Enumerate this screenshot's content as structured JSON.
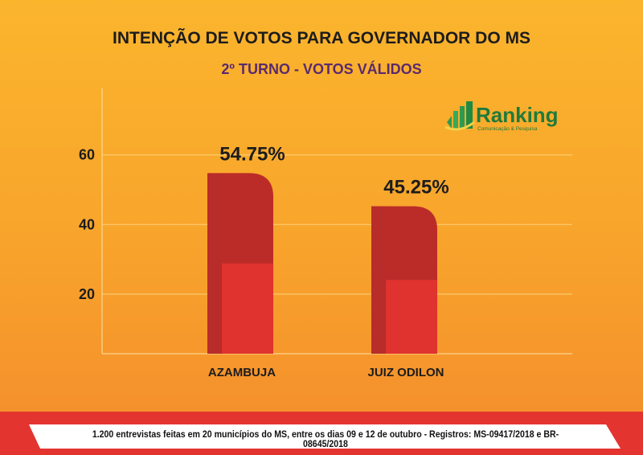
{
  "chart_data": {
    "type": "bar",
    "title": "INTENÇÃO DE VOTOS PARA GOVERNADOR DO MS",
    "subtitle": "2º TURNO - VOTOS VÁLIDOS",
    "categories": [
      "AZAMBUJA",
      "JUIZ ODILON"
    ],
    "values": [
      54.75,
      45.25
    ],
    "data_labels": [
      "54.75%",
      "45.25%"
    ],
    "yticks": [
      "20",
      "40",
      "60"
    ],
    "ylim": [
      0,
      75
    ],
    "grid": true,
    "bar_color": "#e0322e"
  },
  "logo": {
    "name": "Ranking",
    "tagline": "Comunicação & Pesquisa"
  },
  "footer": "1.200 entrevistas feitas em 20 municípios do MS, entre os dias 09 e 12 de outubro - Registros:  MS-09417/2018 e BR-08645/2018"
}
